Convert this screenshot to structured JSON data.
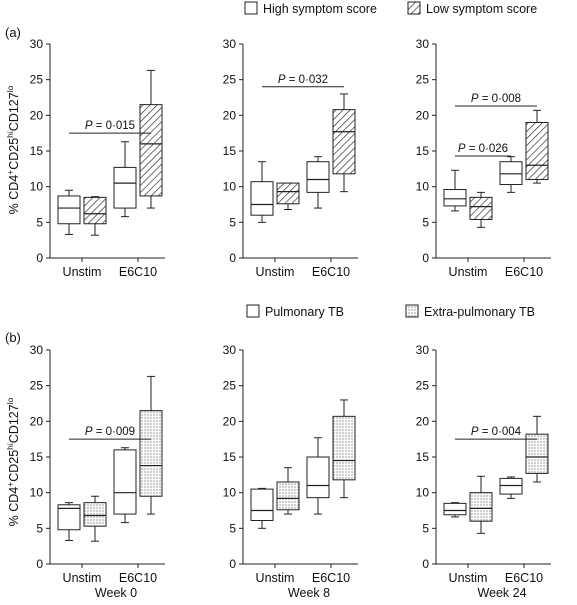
{
  "legend_a": {
    "high": "High symptom score",
    "low": "Low symptom score"
  },
  "legend_b": {
    "pulm": "Pulmonary TB",
    "extra": "Extra-pulmonary TB"
  },
  "panel_labels": {
    "a": "(a)",
    "b": "(b)"
  },
  "ylabel_parts": {
    "prefix": "% CD4",
    "sup1": "+",
    "mid1": "CD25",
    "sup2": "hi",
    "mid2": "CD127",
    "sup3": "lo"
  },
  "time_labels": [
    "Week 0",
    "Week 8",
    "Week 24"
  ],
  "chart_data": [
    {
      "type": "boxplot",
      "row": "a",
      "column": "Week 0",
      "categories": [
        "Unstim",
        "E6C10"
      ],
      "ylim": [
        0,
        30
      ],
      "yticks": [
        0,
        5,
        10,
        15,
        20,
        25,
        30
      ],
      "series": [
        {
          "name": "High symptom score",
          "pattern": "open",
          "boxes": [
            {
              "min": 3.3,
              "q1": 4.8,
              "median": 7.0,
              "q3": 8.7,
              "max": 9.5
            },
            {
              "min": 5.8,
              "q1": 7.0,
              "median": 10.5,
              "q3": 12.7,
              "max": 16.3
            }
          ]
        },
        {
          "name": "Low symptom score",
          "pattern": "hatched",
          "boxes": [
            {
              "min": 3.2,
              "q1": 4.8,
              "median": 6.2,
              "q3": 8.5,
              "max": 8.6
            },
            {
              "min": 7.0,
              "q1": 8.7,
              "median": 16.0,
              "q3": 21.5,
              "max": 26.3
            }
          ]
        }
      ],
      "annotations": [
        {
          "text": "P = 0·015",
          "y": 17.5
        }
      ]
    },
    {
      "type": "boxplot",
      "row": "a",
      "column": "Week 8",
      "categories": [
        "Unstim",
        "E6C10"
      ],
      "ylim": [
        0,
        30
      ],
      "yticks": [
        0,
        5,
        10,
        15,
        20,
        25,
        30
      ],
      "series": [
        {
          "name": "High symptom score",
          "pattern": "open",
          "boxes": [
            {
              "min": 5.0,
              "q1": 6.0,
              "median": 7.5,
              "q3": 10.7,
              "max": 13.5
            },
            {
              "min": 7.0,
              "q1": 9.2,
              "median": 11.0,
              "q3": 13.5,
              "max": 14.2
            }
          ]
        },
        {
          "name": "Low symptom score",
          "pattern": "hatched",
          "boxes": [
            {
              "min": 6.8,
              "q1": 7.6,
              "median": 9.3,
              "q3": 10.5,
              "max": 10.5
            },
            {
              "min": 9.3,
              "q1": 11.8,
              "median": 17.7,
              "q3": 20.8,
              "max": 23.0
            }
          ]
        }
      ],
      "annotations": [
        {
          "text": "P = 0·032",
          "y": 24.0
        }
      ]
    },
    {
      "type": "boxplot",
      "row": "a",
      "column": "Week 24",
      "categories": [
        "Unstim",
        "E6C10"
      ],
      "ylim": [
        0,
        30
      ],
      "yticks": [
        0,
        5,
        10,
        15,
        20,
        25,
        30
      ],
      "series": [
        {
          "name": "High symptom score",
          "pattern": "open",
          "boxes": [
            {
              "min": 6.6,
              "q1": 7.3,
              "median": 8.3,
              "q3": 9.6,
              "max": 12.3
            },
            {
              "min": 9.2,
              "q1": 10.3,
              "median": 11.8,
              "q3": 13.5,
              "max": 14.2
            }
          ]
        },
        {
          "name": "Low symptom score",
          "pattern": "hatched",
          "boxes": [
            {
              "min": 4.3,
              "q1": 5.4,
              "median": 7.2,
              "q3": 8.5,
              "max": 9.2
            },
            {
              "min": 10.5,
              "q1": 11.0,
              "median": 13.0,
              "q3": 19.0,
              "max": 20.7
            }
          ]
        }
      ],
      "annotations": [
        {
          "text": "P = 0·026",
          "y": 14.3
        },
        {
          "text": "P = 0·008",
          "y": 21.3
        }
      ]
    },
    {
      "type": "boxplot",
      "row": "b",
      "column": "Week 0",
      "categories": [
        "Unstim",
        "E6C10"
      ],
      "ylim": [
        0,
        30
      ],
      "yticks": [
        0,
        5,
        10,
        15,
        20,
        25,
        30
      ],
      "series": [
        {
          "name": "Pulmonary TB",
          "pattern": "open",
          "boxes": [
            {
              "min": 3.3,
              "q1": 4.8,
              "median": 7.8,
              "q3": 8.3,
              "max": 8.6
            },
            {
              "min": 5.8,
              "q1": 7.0,
              "median": 10.0,
              "q3": 16.0,
              "max": 16.3
            }
          ]
        },
        {
          "name": "Extra-pulmonary TB",
          "pattern": "dotted",
          "boxes": [
            {
              "min": 3.2,
              "q1": 5.3,
              "median": 6.8,
              "q3": 8.6,
              "max": 9.5
            },
            {
              "min": 7.0,
              "q1": 9.5,
              "median": 13.8,
              "q3": 21.5,
              "max": 26.3
            }
          ]
        }
      ],
      "annotations": [
        {
          "text": "P = 0·009",
          "y": 17.5
        }
      ]
    },
    {
      "type": "boxplot",
      "row": "b",
      "column": "Week 8",
      "categories": [
        "Unstim",
        "E6C10"
      ],
      "ylim": [
        0,
        30
      ],
      "yticks": [
        0,
        5,
        10,
        15,
        20,
        25,
        30
      ],
      "series": [
        {
          "name": "Pulmonary TB",
          "pattern": "open",
          "boxes": [
            {
              "min": 5.0,
              "q1": 6.1,
              "median": 7.5,
              "q3": 10.5,
              "max": 10.6
            },
            {
              "min": 7.0,
              "q1": 9.3,
              "median": 11.0,
              "q3": 15.0,
              "max": 17.7
            }
          ]
        },
        {
          "name": "Extra-pulmonary TB",
          "pattern": "dotted",
          "boxes": [
            {
              "min": 7.0,
              "q1": 7.6,
              "median": 9.2,
              "q3": 11.5,
              "max": 13.5
            },
            {
              "min": 9.3,
              "q1": 11.8,
              "median": 14.5,
              "q3": 20.7,
              "max": 23.0
            }
          ]
        }
      ],
      "annotations": []
    },
    {
      "type": "boxplot",
      "row": "b",
      "column": "Week 24",
      "categories": [
        "Unstim",
        "E6C10"
      ],
      "ylim": [
        0,
        30
      ],
      "yticks": [
        0,
        5,
        10,
        15,
        20,
        25,
        30
      ],
      "series": [
        {
          "name": "Pulmonary TB",
          "pattern": "open",
          "boxes": [
            {
              "min": 6.6,
              "q1": 6.9,
              "median": 7.5,
              "q3": 8.5,
              "max": 8.6
            },
            {
              "min": 9.2,
              "q1": 9.8,
              "median": 11.0,
              "q3": 12.0,
              "max": 12.2
            }
          ]
        },
        {
          "name": "Extra-pulmonary TB",
          "pattern": "dotted",
          "boxes": [
            {
              "min": 4.3,
              "q1": 6.0,
              "median": 7.8,
              "q3": 10.0,
              "max": 12.3
            },
            {
              "min": 11.5,
              "q1": 12.7,
              "median": 15.0,
              "q3": 18.2,
              "max": 20.7
            }
          ]
        }
      ],
      "annotations": [
        {
          "text": "P = 0·004",
          "y": 17.5
        }
      ]
    }
  ]
}
